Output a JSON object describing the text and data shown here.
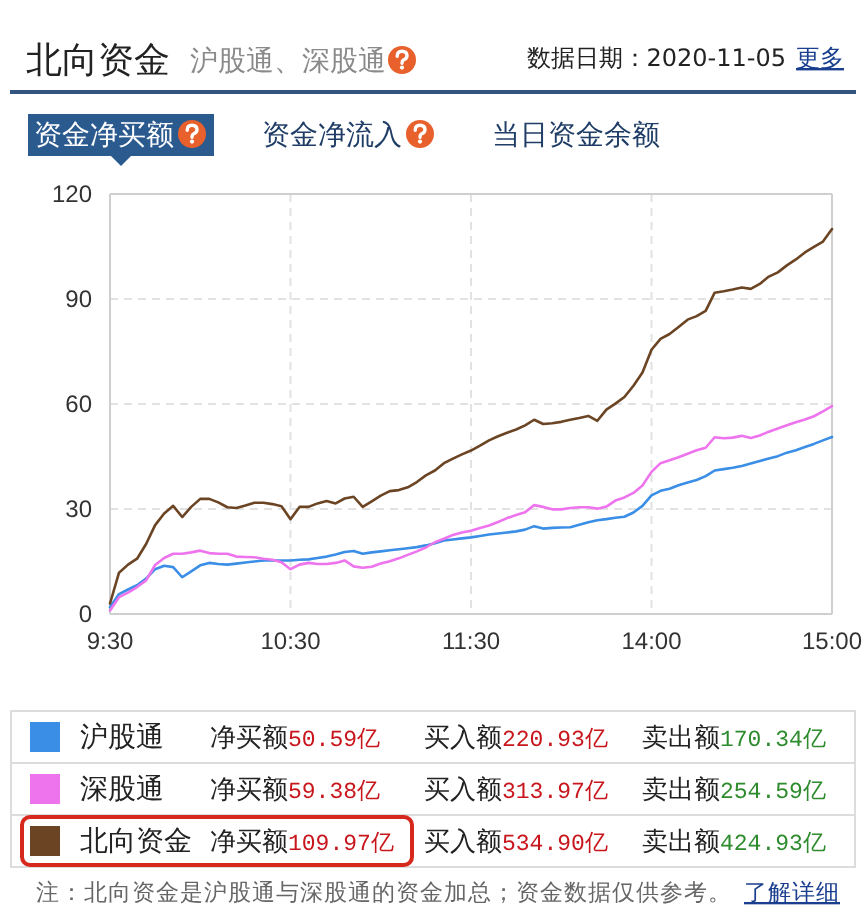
{
  "chart_data": {
    "type": "line",
    "title": "北向资金",
    "subtitle": "沪股通、深股通",
    "annotations": [
      "数据日期：2020-11-05",
      "更多",
      "资金净买额",
      "资金净流入",
      "当日资金余额",
      "净买额50.59亿",
      "买入额220.93亿",
      "卖出额170.34亿",
      "净买额59.38亿",
      "买入额313.97亿",
      "卖出额254.59亿",
      "净买额109.97亿",
      "买入额534.90亿",
      "卖出额424.93亿",
      "注：北向资金是沪股通与深股通的资金加总；资金数据仅供参考。",
      "了解详细"
    ],
    "categories": [
      "9:30",
      null,
      null,
      null,
      null,
      null,
      null,
      null,
      null,
      null,
      null,
      null,
      null,
      null,
      null,
      null,
      null,
      null,
      null,
      null,
      "10:30",
      null,
      null,
      null,
      null,
      null,
      null,
      null,
      null,
      null,
      null,
      null,
      null,
      null,
      null,
      null,
      null,
      null,
      null,
      null,
      "11:30",
      null,
      null,
      null,
      null,
      null,
      null,
      null,
      null,
      null,
      null,
      null,
      null,
      null,
      null,
      null,
      null,
      null,
      null,
      null,
      "14:00",
      null,
      null,
      null,
      null,
      null,
      null,
      null,
      null,
      null,
      null,
      null,
      null,
      null,
      null,
      null,
      null,
      null,
      null,
      null,
      "15:00"
    ],
    "ylim": [
      0,
      120
    ],
    "yticks": [
      0,
      30,
      60,
      90,
      120
    ],
    "grid": true,
    "legend": "bottom",
    "series": [
      {
        "name": "沪股通",
        "color": "#3a8ee6",
        "values": [
          1.9,
          5.7,
          7,
          8.2,
          10.1,
          12.8,
          13.8,
          13.4,
          10.5,
          12.2,
          13.9,
          14.6,
          14.3,
          14.1,
          14.4,
          14.7,
          15,
          15.3,
          15.3,
          15.3,
          15.3,
          15.5,
          15.6,
          16,
          16.4,
          17,
          17.7,
          18,
          17.2,
          17.6,
          17.9,
          18.2,
          18.5,
          18.8,
          19.1,
          19.6,
          20.2,
          21,
          21.3,
          21.6,
          21.9,
          22.3,
          22.7,
          23,
          23.3,
          23.6,
          24.1,
          25.1,
          24.4,
          24.6,
          24.7,
          24.8,
          25.5,
          26.2,
          26.8,
          27.1,
          27.5,
          27.8,
          29,
          30.9,
          33.9,
          35.2,
          35.8,
          36.8,
          37.6,
          38.3,
          39.4,
          41,
          41.4,
          41.8,
          42.3,
          43,
          43.7,
          44.4,
          45.1,
          46.1,
          46.8,
          47.7,
          48.6,
          49.6,
          50.59
        ]
      },
      {
        "name": "深股通",
        "color": "#ee74ee",
        "values": [
          1,
          4.8,
          6.1,
          7.7,
          9.6,
          14,
          16,
          17.2,
          17.2,
          17.6,
          18.1,
          17.4,
          17.2,
          17.2,
          16.4,
          16.3,
          16.2,
          15.8,
          15.5,
          14.8,
          12.8,
          14.1,
          14.6,
          14.3,
          14.3,
          14.6,
          15.3,
          13.6,
          13.2,
          13.5,
          14.4,
          15.1,
          15.9,
          16.9,
          17.9,
          19,
          20.5,
          21.5,
          22.6,
          23.3,
          23.8,
          24.6,
          25.3,
          26.3,
          27.4,
          28.3,
          29.1,
          31.1,
          30.6,
          29.9,
          29.9,
          30.3,
          30.5,
          30.5,
          30.1,
          30.7,
          32.4,
          33.3,
          34.6,
          36.7,
          40.6,
          43.1,
          43.9,
          44.8,
          45.8,
          46.8,
          47.5,
          50.5,
          50.2,
          50.4,
          50.9,
          50.3,
          51,
          52.1,
          53,
          53.9,
          54.8,
          55.6,
          56.5,
          57.9,
          59.38
        ]
      },
      {
        "name": "北向资金",
        "color": "#6b4423",
        "values": [
          3,
          11.8,
          14.1,
          15.8,
          20,
          25.4,
          28.7,
          30.9,
          27.7,
          30.6,
          32.9,
          32.9,
          31.9,
          30.5,
          30.3,
          31,
          31.8,
          31.8,
          31.4,
          30.8,
          27.1,
          30.6,
          30.6,
          31.6,
          32.3,
          31.6,
          33,
          33.5,
          30.6,
          32.2,
          33.8,
          35.1,
          35.4,
          36.2,
          37.7,
          39.6,
          41,
          43.1,
          44.4,
          45.6,
          46.7,
          48.1,
          49.6,
          50.8,
          51.8,
          52.7,
          53.9,
          55.5,
          54.3,
          54.5,
          54.9,
          55.5,
          56,
          56.6,
          55.2,
          58.4,
          60.1,
          62,
          65.2,
          69,
          75.5,
          78.6,
          80,
          82,
          84.1,
          85.1,
          86.6,
          91.8,
          92.2,
          92.7,
          93.3,
          92.9,
          94.3,
          96.4,
          97.6,
          99.6,
          101.3,
          103.3,
          104.9,
          106.4,
          109.97
        ]
      }
    ]
  }
}
